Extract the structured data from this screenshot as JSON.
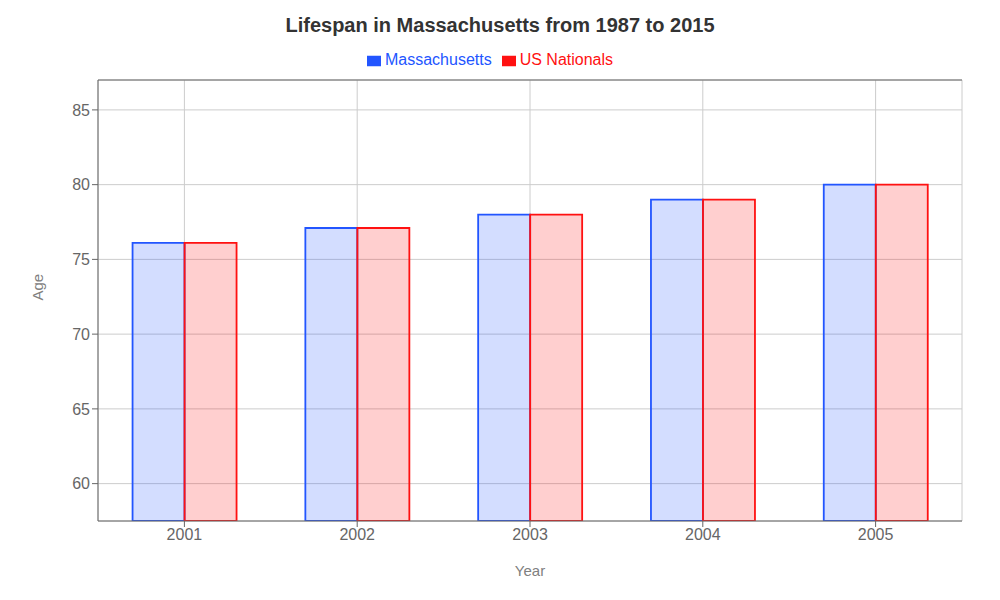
{
  "chart_data": {
    "type": "bar",
    "title": "Lifespan in Massachusetts from 1987 to 2015",
    "x_label": "Year",
    "y_label": "Age",
    "categories": [
      "2001",
      "2002",
      "2003",
      "2004",
      "2005"
    ],
    "series": [
      {
        "name": "Massachusetts",
        "color": "#2255ff",
        "values": [
          76.1,
          77.1,
          78.0,
          79.0,
          80.0
        ]
      },
      {
        "name": "US Nationals",
        "color": "#ff1111",
        "values": [
          76.1,
          77.1,
          78.0,
          79.0,
          80.0
        ]
      }
    ],
    "ylim": [
      57.5,
      87
    ],
    "yticks": [
      60,
      65,
      70,
      75,
      80,
      85
    ],
    "grid": true,
    "legend": "top"
  }
}
